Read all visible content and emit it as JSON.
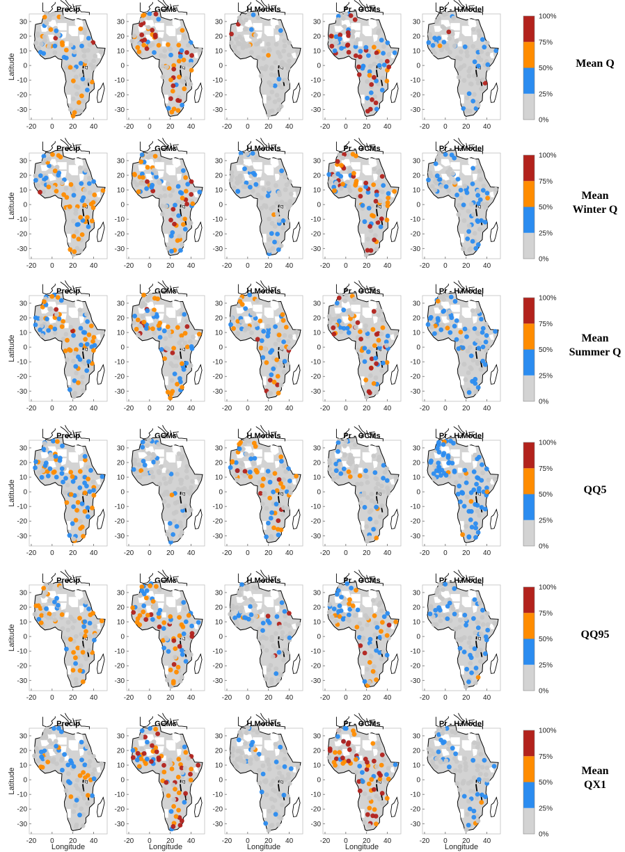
{
  "figure": {
    "x_axis_label": "Longitude",
    "y_axis_label": "Latitude",
    "x_ticks": [
      "-20",
      "0",
      "20",
      "40"
    ],
    "y_ticks": [
      "30",
      "20",
      "10",
      "0",
      "-10",
      "-20",
      "-30"
    ],
    "panel_titles": [
      "Precip",
      "GCMs",
      "H.Models",
      "Pr - GCMs",
      "Pr - H.Model"
    ],
    "row_labels": [
      [
        "Mean Q"
      ],
      [
        "Mean",
        "Winter Q"
      ],
      [
        "Mean",
        "Summer Q"
      ],
      [
        "QQ5"
      ],
      [
        "QQ95"
      ],
      [
        "Mean",
        "QX1"
      ]
    ],
    "colorbar": {
      "ticks": [
        "0%",
        "25%",
        "50%",
        "75%",
        "100%"
      ],
      "colors": [
        "#d3d3d3",
        "#2b8cf0",
        "#ff8c00",
        "#b2221c"
      ]
    },
    "colors": {
      "land": "#d3d3d3",
      "coast": "#000000",
      "cat_gray": "#c8c8c8",
      "cat_blue": "#2b8cf0",
      "cat_orange": "#ff8c00",
      "cat_red": "#b2221c"
    }
  },
  "chart_data": {
    "type": "scatter",
    "description_rows": [
      "Mean Q",
      "Mean Winter Q",
      "Mean Summer Q",
      "QQ5",
      "QQ95",
      "Mean QX1"
    ],
    "columns": [
      "Precip",
      "GCMs",
      "H.Models",
      "Pr - GCMs",
      "Pr - H.Model"
    ],
    "xlabel": "Longitude",
    "ylabel": "Latitude",
    "xlim": [
      -22,
      53
    ],
    "ylim": [
      -37,
      39
    ],
    "colorbar_range": [
      "0%",
      "100%"
    ],
    "categories": [
      "0-25%",
      "25-50%",
      "50-75%",
      "75-100%"
    ],
    "dominant_mix": [
      [
        [
          0.6,
          0.2,
          0.18,
          0.02
        ],
        [
          0.35,
          0.2,
          0.25,
          0.2
        ],
        [
          0.85,
          0.08,
          0.04,
          0.03
        ],
        [
          0.3,
          0.3,
          0.15,
          0.25
        ],
        [
          0.75,
          0.22,
          0.02,
          0.01
        ]
      ],
      [
        [
          0.45,
          0.25,
          0.28,
          0.02
        ],
        [
          0.4,
          0.3,
          0.2,
          0.1
        ],
        [
          0.75,
          0.2,
          0.03,
          0.02
        ],
        [
          0.35,
          0.2,
          0.25,
          0.2
        ],
        [
          0.6,
          0.38,
          0.02,
          0.0
        ]
      ],
      [
        [
          0.4,
          0.3,
          0.28,
          0.02
        ],
        [
          0.35,
          0.25,
          0.3,
          0.1
        ],
        [
          0.5,
          0.25,
          0.15,
          0.1
        ],
        [
          0.4,
          0.25,
          0.2,
          0.15
        ],
        [
          0.55,
          0.42,
          0.03,
          0.0
        ]
      ],
      [
        [
          0.2,
          0.4,
          0.38,
          0.02
        ],
        [
          0.75,
          0.22,
          0.03,
          0.0
        ],
        [
          0.45,
          0.25,
          0.2,
          0.1
        ],
        [
          0.7,
          0.25,
          0.05,
          0.0
        ],
        [
          0.2,
          0.75,
          0.05,
          0.0
        ]
      ],
      [
        [
          0.55,
          0.15,
          0.28,
          0.02
        ],
        [
          0.3,
          0.3,
          0.3,
          0.1
        ],
        [
          0.75,
          0.2,
          0.03,
          0.02
        ],
        [
          0.45,
          0.25,
          0.2,
          0.1
        ],
        [
          0.6,
          0.38,
          0.02,
          0.0
        ]
      ],
      [
        [
          0.65,
          0.2,
          0.13,
          0.02
        ],
        [
          0.3,
          0.3,
          0.25,
          0.15
        ],
        [
          0.8,
          0.18,
          0.02,
          0.0
        ],
        [
          0.25,
          0.15,
          0.3,
          0.3
        ],
        [
          0.75,
          0.23,
          0.02,
          0.0
        ]
      ]
    ]
  }
}
